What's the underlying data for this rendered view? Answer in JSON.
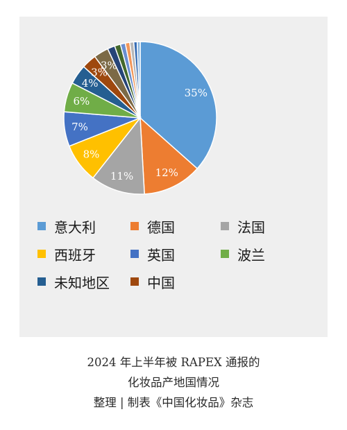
{
  "chart_data": {
    "type": "pie",
    "slices": [
      {
        "label": "意大利",
        "value": 35,
        "color": "#5b9bd5",
        "data_label": "35%"
      },
      {
        "label": "德国",
        "value": 12,
        "color": "#ed7d31",
        "data_label": "12%"
      },
      {
        "label": "法国",
        "value": 11,
        "color": "#a5a5a5",
        "data_label": "11%"
      },
      {
        "label": "西班牙",
        "value": 8,
        "color": "#ffc000",
        "data_label": "8%"
      },
      {
        "label": "英国",
        "value": 7,
        "color": "#4472c4",
        "data_label": "7%"
      },
      {
        "label": "波兰",
        "value": 6,
        "color": "#70ad47",
        "data_label": "6%"
      },
      {
        "label": "未知地区",
        "value": 4,
        "color": "#255e91",
        "data_label": "4%"
      },
      {
        "label": "中国",
        "value": 3,
        "color": "#9e480e",
        "data_label": "3%"
      },
      {
        "label": "",
        "value": 3,
        "color": "#7c6a46",
        "data_label": "3%"
      },
      {
        "label": "",
        "value": 1.5,
        "color": "#264478",
        "data_label": ""
      },
      {
        "label": "",
        "value": 1.2,
        "color": "#43682b",
        "data_label": ""
      },
      {
        "label": "",
        "value": 1.0,
        "color": "#698ed0",
        "data_label": ""
      },
      {
        "label": "",
        "value": 0.9,
        "color": "#f1975a",
        "data_label": ""
      },
      {
        "label": "",
        "value": 0.8,
        "color": "#b7b7b7",
        "data_label": ""
      },
      {
        "label": "",
        "value": 0.7,
        "color": "#3a6fb5",
        "data_label": ""
      },
      {
        "label": "",
        "value": 0.6,
        "color": "#8cb8e0",
        "data_label": ""
      }
    ],
    "legend": {
      "placement": "bottom",
      "items": [
        {
          "label": "意大利",
          "color": "#5b9bd5"
        },
        {
          "label": "德国",
          "color": "#ed7d31"
        },
        {
          "label": "法国",
          "color": "#a5a5a5"
        },
        {
          "label": "西班牙",
          "color": "#ffc000"
        },
        {
          "label": "英国",
          "color": "#4472c4"
        },
        {
          "label": "波兰",
          "color": "#70ad47"
        },
        {
          "label": "未知地区",
          "color": "#255e91"
        },
        {
          "label": "中国",
          "color": "#9e480e"
        }
      ]
    }
  },
  "caption": {
    "line1": "2024 年上半年被 RAPEX 通报的",
    "line2": "化妆品产地国情况",
    "line3": "整理 | 制表《中国化妆品》杂志"
  }
}
